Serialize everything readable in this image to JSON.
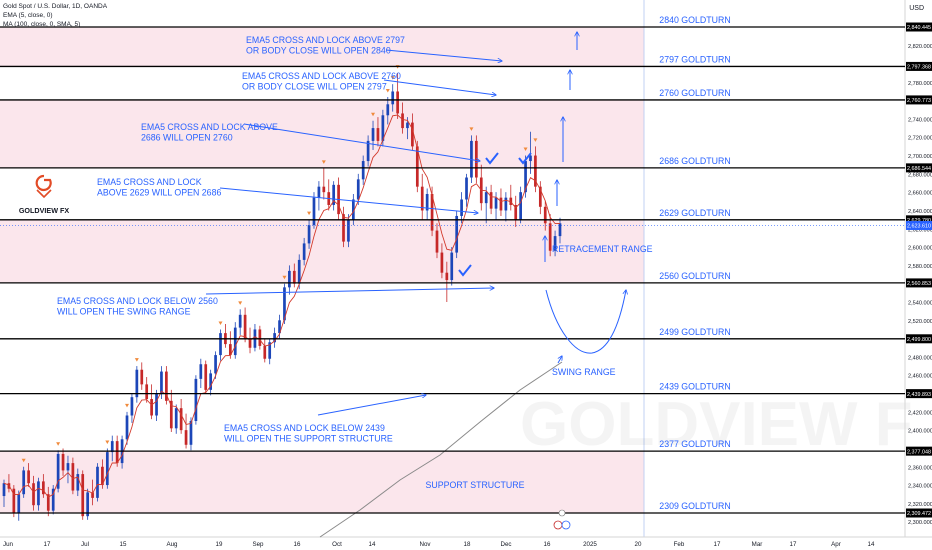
{
  "header": {
    "title": "Gold Spot / U.S. Dollar, 1D, OANDA",
    "ema_label": "EMA (5, close, 0)",
    "ma_label": "MA (100, close, 0, SMA, 5)",
    "currency": "USD"
  },
  "logo": {
    "text": "GOLDVIEW FX"
  },
  "watermark": "GOLDVIEW F",
  "colors": {
    "zone_fill": "#fbe6ec",
    "up_candle": "#1c46b8",
    "down_candle": "#c62828",
    "ema_line": "#d33a2c",
    "ma_line": "#8a8a8a",
    "annotation_blue": "#2962ff",
    "level_line": "#000000"
  },
  "chart_data": {
    "type": "candlestick",
    "y_axis": {
      "min": 2295,
      "max": 2855,
      "ticks": [
        2300,
        2320,
        2340,
        2360,
        2380,
        2400,
        2420,
        2440,
        2460,
        2480,
        2500,
        2520,
        2540,
        2560,
        2580,
        2600,
        2620,
        2640,
        2660,
        2680,
        2700,
        2720,
        2740,
        2760,
        2780,
        2800,
        2820
      ]
    },
    "x_axis": {
      "ticks": [
        "Jun",
        "17",
        "Jul",
        "15",
        "Aug",
        "19",
        "Sep",
        "16",
        "Oct",
        "14",
        "Nov",
        "18",
        "Dec",
        "16",
        "2025",
        "20",
        "Feb",
        "17",
        "Mar",
        "17",
        "Apr",
        "14"
      ]
    },
    "levels": [
      {
        "label": "2840 GOLDTURN",
        "value": 2840.445,
        "tag": "2,840.445"
      },
      {
        "label": "2797 GOLDTURN",
        "value": 2797.368,
        "tag": "2,797.368"
      },
      {
        "label": "2760 GOLDTURN",
        "value": 2760.773,
        "tag": "2,760.773"
      },
      {
        "label": "2686 GOLDTURN",
        "value": 2686.544,
        "tag": "2,686.544"
      },
      {
        "label": "2629 GOLDTURN",
        "value": 2629.78,
        "tag": "2,629.780"
      },
      {
        "label": "2560 GOLDTURN",
        "value": 2560.853,
        "tag": "2,560.853"
      },
      {
        "label": "2499 GOLDTURN",
        "value": 2499.8,
        "tag": "2,499.800"
      },
      {
        "label": "2439 GOLDTURN",
        "value": 2439.893,
        "tag": "2,439.893"
      },
      {
        "label": "2377 GOLDTURN",
        "value": 2377.048,
        "tag": "2,377.048"
      },
      {
        "label": "2309 GOLDTURN",
        "value": 2309.472,
        "tag": "2,309.472"
      }
    ],
    "current_price": {
      "value": 2623.61,
      "tag": "2,623.610"
    },
    "zones": [
      {
        "from": 2797.368,
        "to": 2840.445
      },
      {
        "from": 2686.544,
        "to": 2760.773
      },
      {
        "from": 2560.853,
        "to": 2629.78
      },
      {
        "from": 2309.472,
        "to": 2377.048
      }
    ],
    "annotations": {
      "a2797": [
        "EMA5 CROSS AND LOCK ABOVE 2797",
        "OR BODY CLOSE WILL OPEN 2840"
      ],
      "a2760": [
        "EMA5 CROSS AND LOCK ABOVE 2760",
        "OR BODY CLOSE WILL OPEN 2797"
      ],
      "a2686": [
        "EMA5 CROSS AND LOCK ABOVE",
        "2686 WILL OPEN 2760"
      ],
      "a2629": [
        "EMA5 CROSS AND LOCK",
        "ABOVE 2629 WILL OPEN 2686"
      ],
      "a2560": [
        "EMA5 CROSS AND LOCK BELOW 2560",
        "WILL OPEN THE SWING RANGE"
      ],
      "a2439": [
        "EMA5 CROSS AND LOCK BELOW 2439",
        "WILL OPEN THE SUPPORT STRUCTURE"
      ],
      "retracement": "RETRACEMENT RANGE",
      "swing": "SWING RANGE",
      "support": "SUPPORT STRUCTURE"
    },
    "candles": [
      [
        2328,
        2346,
        2316,
        2342
      ],
      [
        2342,
        2352,
        2332,
        2336
      ],
      [
        2336,
        2340,
        2305,
        2309
      ],
      [
        2309,
        2334,
        2301,
        2330
      ],
      [
        2330,
        2360,
        2326,
        2356
      ],
      [
        2356,
        2364,
        2338,
        2342
      ],
      [
        2342,
        2350,
        2312,
        2318
      ],
      [
        2318,
        2348,
        2312,
        2344
      ],
      [
        2344,
        2352,
        2326,
        2330
      ],
      [
        2330,
        2338,
        2306,
        2312
      ],
      [
        2312,
        2340,
        2308,
        2336
      ],
      [
        2336,
        2378,
        2332,
        2374
      ],
      [
        2374,
        2380,
        2350,
        2356
      ],
      [
        2356,
        2372,
        2342,
        2364
      ],
      [
        2364,
        2370,
        2330,
        2334
      ],
      [
        2334,
        2358,
        2328,
        2352
      ],
      [
        2352,
        2356,
        2302,
        2306
      ],
      [
        2306,
        2336,
        2302,
        2332
      ],
      [
        2332,
        2346,
        2318,
        2326
      ],
      [
        2326,
        2364,
        2322,
        2360
      ],
      [
        2360,
        2368,
        2336,
        2340
      ],
      [
        2340,
        2380,
        2336,
        2376
      ],
      [
        2376,
        2394,
        2366,
        2388
      ],
      [
        2388,
        2394,
        2360,
        2364
      ],
      [
        2364,
        2394,
        2358,
        2390
      ],
      [
        2390,
        2420,
        2384,
        2416
      ],
      [
        2416,
        2440,
        2408,
        2436
      ],
      [
        2436,
        2470,
        2430,
        2466
      ],
      [
        2466,
        2474,
        2444,
        2450
      ],
      [
        2450,
        2458,
        2430,
        2434
      ],
      [
        2434,
        2450,
        2412,
        2416
      ],
      [
        2416,
        2444,
        2410,
        2440
      ],
      [
        2440,
        2470,
        2434,
        2464
      ],
      [
        2464,
        2470,
        2428,
        2432
      ],
      [
        2432,
        2444,
        2398,
        2402
      ],
      [
        2402,
        2428,
        2396,
        2424
      ],
      [
        2424,
        2434,
        2396,
        2400
      ],
      [
        2400,
        2418,
        2380,
        2384
      ],
      [
        2384,
        2414,
        2378,
        2410
      ],
      [
        2410,
        2460,
        2406,
        2456
      ],
      [
        2456,
        2478,
        2446,
        2472
      ],
      [
        2472,
        2476,
        2440,
        2444
      ],
      [
        2444,
        2466,
        2438,
        2462
      ],
      [
        2462,
        2486,
        2456,
        2482
      ],
      [
        2482,
        2510,
        2476,
        2506
      ],
      [
        2506,
        2516,
        2490,
        2494
      ],
      [
        2494,
        2508,
        2478,
        2482
      ],
      [
        2482,
        2518,
        2478,
        2512
      ],
      [
        2512,
        2532,
        2504,
        2526
      ],
      [
        2526,
        2534,
        2496,
        2500
      ],
      [
        2500,
        2512,
        2484,
        2490
      ],
      [
        2490,
        2516,
        2486,
        2510
      ],
      [
        2510,
        2514,
        2488,
        2492
      ],
      [
        2492,
        2500,
        2474,
        2478
      ],
      [
        2478,
        2500,
        2472,
        2496
      ],
      [
        2496,
        2512,
        2490,
        2506
      ],
      [
        2506,
        2526,
        2500,
        2520
      ],
      [
        2520,
        2560,
        2516,
        2556
      ],
      [
        2556,
        2580,
        2548,
        2574
      ],
      [
        2574,
        2582,
        2556,
        2560
      ],
      [
        2560,
        2592,
        2554,
        2586
      ],
      [
        2586,
        2610,
        2580,
        2604
      ],
      [
        2604,
        2630,
        2598,
        2624
      ],
      [
        2624,
        2660,
        2620,
        2654
      ],
      [
        2654,
        2672,
        2640,
        2666
      ],
      [
        2666,
        2686,
        2652,
        2660
      ],
      [
        2660,
        2674,
        2640,
        2646
      ],
      [
        2646,
        2672,
        2640,
        2668
      ],
      [
        2668,
        2676,
        2630,
        2636
      ],
      [
        2636,
        2644,
        2600,
        2606
      ],
      [
        2606,
        2636,
        2600,
        2630
      ],
      [
        2630,
        2658,
        2624,
        2652
      ],
      [
        2652,
        2680,
        2646,
        2674
      ],
      [
        2674,
        2700,
        2668,
        2694
      ],
      [
        2694,
        2722,
        2688,
        2716
      ],
      [
        2716,
        2738,
        2706,
        2730
      ],
      [
        2730,
        2742,
        2710,
        2716
      ],
      [
        2716,
        2750,
        2710,
        2744
      ],
      [
        2744,
        2764,
        2734,
        2756
      ],
      [
        2756,
        2778,
        2748,
        2770
      ],
      [
        2770,
        2790,
        2740,
        2746
      ],
      [
        2746,
        2758,
        2724,
        2730
      ],
      [
        2730,
        2742,
        2718,
        2736
      ],
      [
        2736,
        2746,
        2706,
        2710
      ],
      [
        2710,
        2716,
        2660,
        2666
      ],
      [
        2666,
        2680,
        2630,
        2640
      ],
      [
        2640,
        2664,
        2630,
        2658
      ],
      [
        2658,
        2666,
        2612,
        2618
      ],
      [
        2618,
        2626,
        2588,
        2594
      ],
      [
        2594,
        2604,
        2566,
        2572
      ],
      [
        2572,
        2584,
        2540,
        2564
      ],
      [
        2564,
        2600,
        2558,
        2594
      ],
      [
        2594,
        2640,
        2588,
        2634
      ],
      [
        2634,
        2660,
        2626,
        2652
      ],
      [
        2652,
        2680,
        2644,
        2676
      ],
      [
        2676,
        2722,
        2670,
        2716
      ],
      [
        2716,
        2722,
        2670,
        2676
      ],
      [
        2676,
        2690,
        2640,
        2648
      ],
      [
        2648,
        2666,
        2626,
        2660
      ],
      [
        2660,
        2668,
        2636,
        2642
      ],
      [
        2642,
        2660,
        2630,
        2654
      ],
      [
        2654,
        2664,
        2634,
        2640
      ],
      [
        2640,
        2660,
        2628,
        2654
      ],
      [
        2654,
        2668,
        2640,
        2646
      ],
      [
        2646,
        2656,
        2622,
        2630
      ],
      [
        2630,
        2666,
        2626,
        2660
      ],
      [
        2660,
        2700,
        2654,
        2694
      ],
      [
        2694,
        2726,
        2680,
        2700
      ],
      [
        2700,
        2710,
        2660,
        2666
      ],
      [
        2666,
        2672,
        2636,
        2644
      ],
      [
        2644,
        2650,
        2618,
        2626
      ],
      [
        2626,
        2636,
        2590,
        2596
      ],
      [
        2596,
        2618,
        2590,
        2612
      ],
      [
        2612,
        2632,
        2604,
        2626
      ]
    ]
  }
}
